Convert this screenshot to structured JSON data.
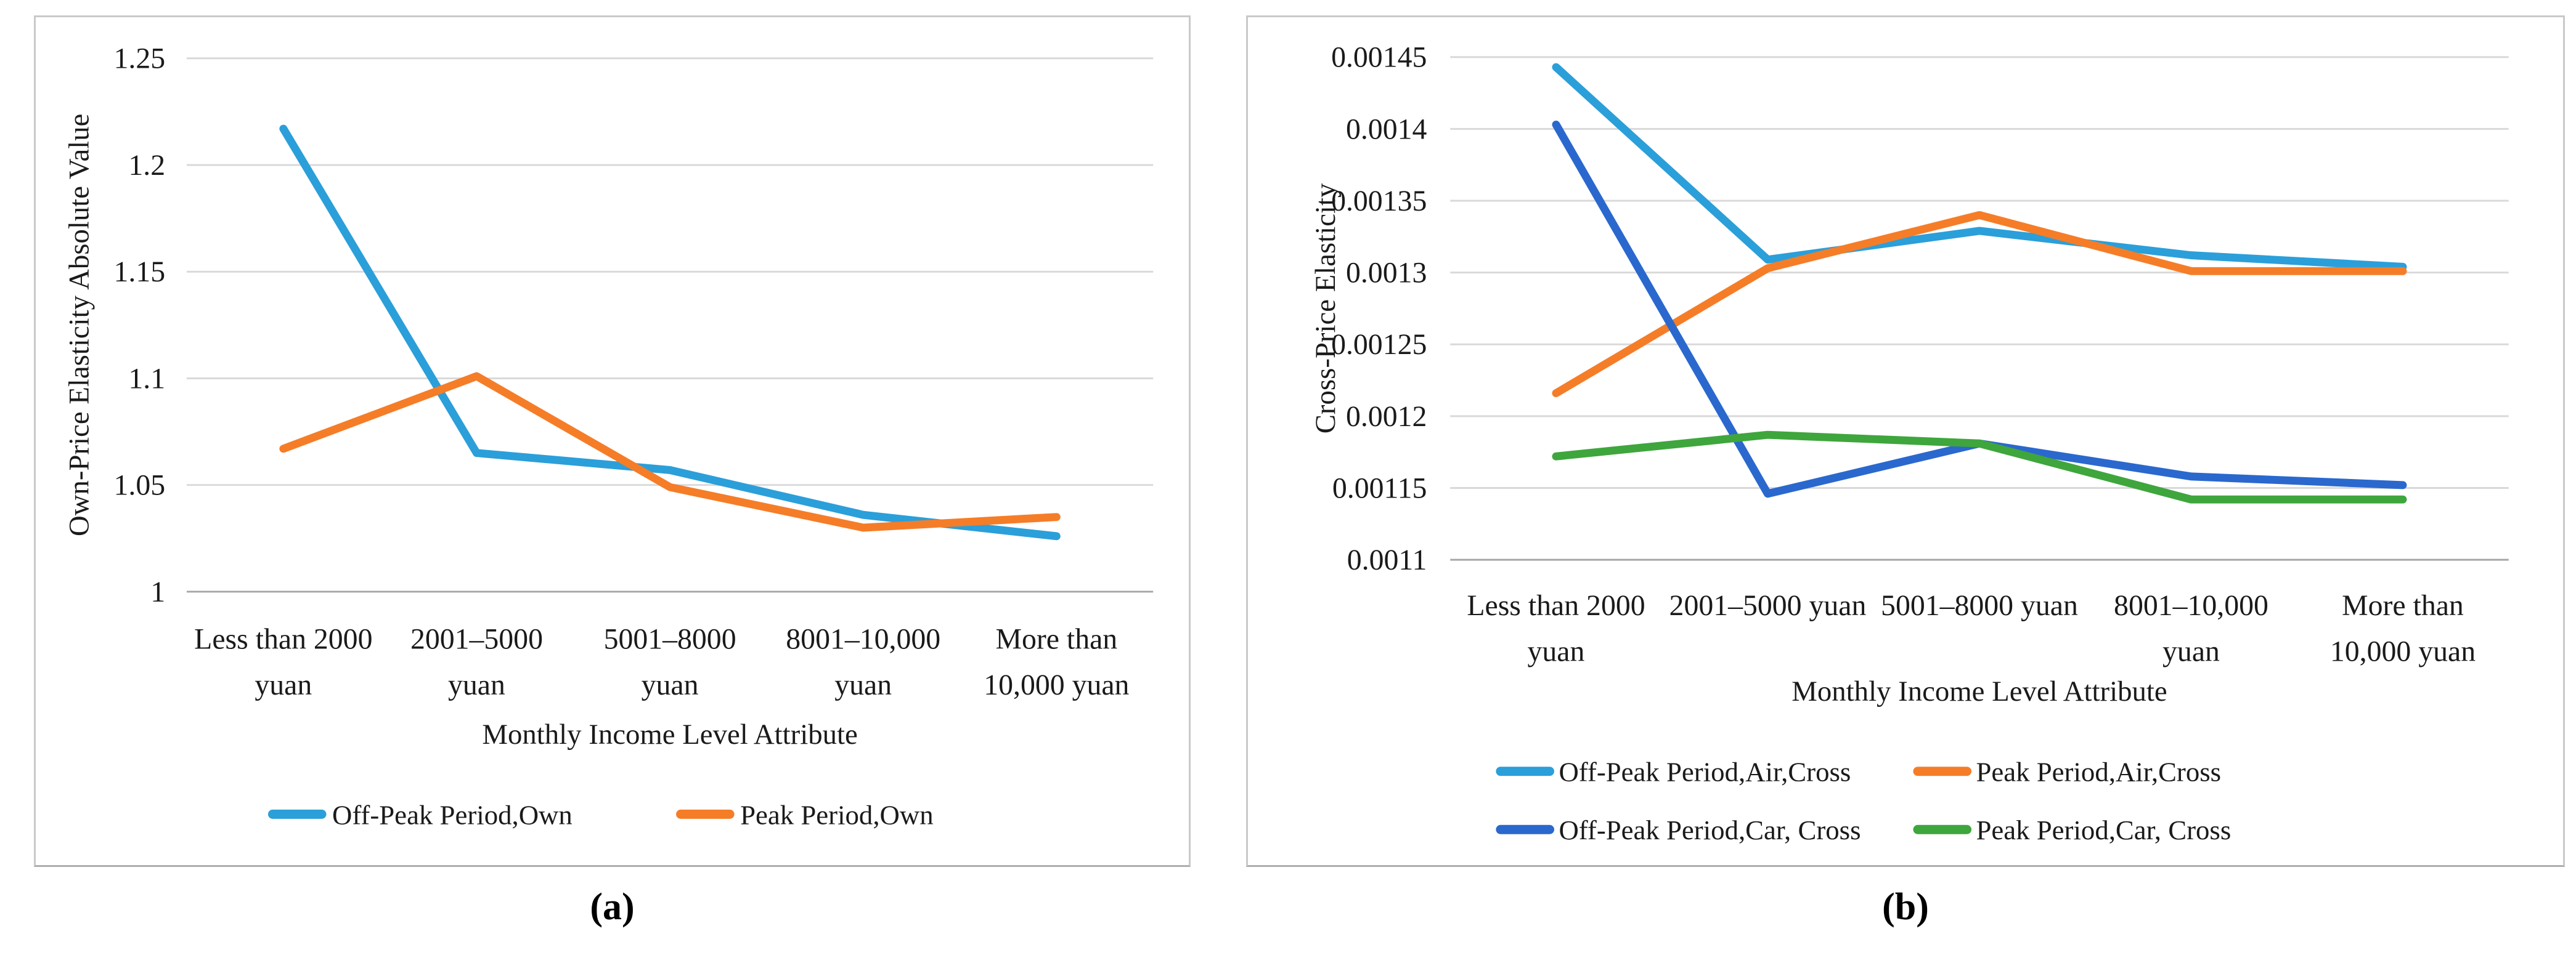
{
  "figure": {
    "caption_a": "(a)",
    "caption_b": "(b)"
  },
  "colors": {
    "light_blue": "#2b9fd9",
    "orange": "#f57d28",
    "dark_blue": "#2a68ce",
    "green": "#3ea63c",
    "gridline": "#d9d9d9",
    "axis_line": "#a6a6a6",
    "text": "#1a1a1a",
    "panel_border": "#c9c9c9"
  },
  "chart_data": [
    {
      "id": "a",
      "type": "line",
      "title": "",
      "xlabel": "Monthly Income Level Attribute",
      "ylabel": "Own-Price Elasticity Absolute Value",
      "categories": [
        [
          "Less than 2000",
          "yuan"
        ],
        [
          "2001–5000",
          "yuan"
        ],
        [
          "5001–8000",
          "yuan"
        ],
        [
          "8001–10,000",
          "yuan"
        ],
        [
          "More than",
          "10,000 yuan"
        ]
      ],
      "ylim": [
        1,
        1.25
      ],
      "ytick_step": 0.05,
      "ytick_labels": [
        "1",
        "1.05",
        "1.1",
        "1.15",
        "1.2",
        "1.25"
      ],
      "grid": true,
      "legend_position": "bottom",
      "legend_rows": [
        [
          0,
          1
        ]
      ],
      "series": [
        {
          "name": "Off-Peak Period,Own",
          "color": "#2b9fd9",
          "values": [
            1.217,
            1.065,
            1.057,
            1.036,
            1.026
          ]
        },
        {
          "name": "Peak Period,Own",
          "color": "#f57d28",
          "values": [
            1.067,
            1.101,
            1.049,
            1.03,
            1.035
          ]
        }
      ]
    },
    {
      "id": "b",
      "type": "line",
      "title": "",
      "xlabel": "Monthly Income Level Attribute",
      "ylabel": "Cross-Price Elasticity",
      "categories": [
        [
          "Less than 2000",
          "yuan"
        ],
        [
          "2001–5000 yuan"
        ],
        [
          "5001–8000 yuan"
        ],
        [
          "8001–10,000",
          "yuan"
        ],
        [
          "More than",
          "10,000 yuan"
        ]
      ],
      "ylim": [
        0.0011,
        0.00145
      ],
      "ytick_step": 5e-05,
      "ytick_labels": [
        "0.0011",
        "0.00115",
        "0.0012",
        "0.00125",
        "0.0013",
        "0.00135",
        "0.0014",
        "0.00145"
      ],
      "grid": true,
      "legend_position": "bottom",
      "legend_rows": [
        [
          0,
          1
        ],
        [
          2,
          3
        ]
      ],
      "series": [
        {
          "name": "Off-Peak Period,Air,Cross",
          "color": "#2b9fd9",
          "values": [
            0.001443,
            0.001309,
            0.001329,
            0.001312,
            0.001304
          ]
        },
        {
          "name": "Peak Period,Air,Cross",
          "color": "#f57d28",
          "values": [
            0.001216,
            0.001303,
            0.00134,
            0.001301,
            0.001301
          ]
        },
        {
          "name": "Off-Peak Period,Car, Cross",
          "color": "#2a68ce",
          "values": [
            0.001403,
            0.001146,
            0.001181,
            0.001158,
            0.001152
          ]
        },
        {
          "name": "Peak Period,Car, Cross",
          "color": "#3ea63c",
          "values": [
            0.001172,
            0.001187,
            0.001181,
            0.001142,
            0.001142
          ]
        }
      ]
    }
  ]
}
